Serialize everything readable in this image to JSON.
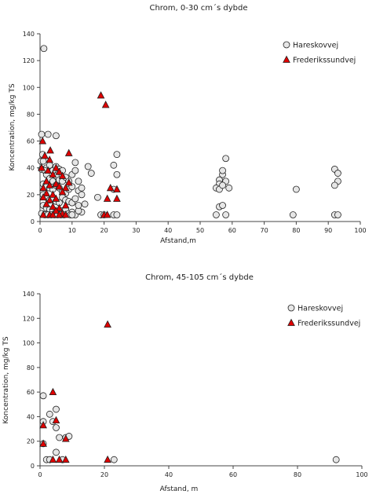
{
  "chart_data": [
    {
      "type": "scatter",
      "title": "Chrom, 0-30 cm´s dybde",
      "xlabel": "Afstand,m",
      "ylabel": "Koncentration, mg/kg TS",
      "xlim": [
        0,
        100
      ],
      "ylim": [
        0,
        140
      ],
      "xticks": [
        0,
        10,
        20,
        30,
        40,
        50,
        60,
        70,
        80,
        90,
        100
      ],
      "yticks": [
        0,
        20,
        40,
        60,
        80,
        100,
        120,
        140
      ],
      "grid": false,
      "legend_position": "top-right",
      "series": [
        {
          "name": "Hareskovvej",
          "marker": "circle",
          "color": "#e6e6e6",
          "points": [
            [
              1.2,
              129
            ],
            [
              0.5,
              65
            ],
            [
              2.5,
              65
            ],
            [
              5,
              64
            ],
            [
              0.8,
              50
            ],
            [
              0.3,
              45
            ],
            [
              1,
              45
            ],
            [
              2,
              40
            ],
            [
              0.5,
              39
            ],
            [
              1.5,
              38
            ],
            [
              3,
              42
            ],
            [
              4,
              38
            ],
            [
              5,
              41
            ],
            [
              6,
              39
            ],
            [
              7,
              38
            ],
            [
              2,
              35
            ],
            [
              3,
              32
            ],
            [
              4,
              30
            ],
            [
              5,
              34
            ],
            [
              6,
              31
            ],
            [
              7,
              30
            ],
            [
              8,
              33
            ],
            [
              1,
              28
            ],
            [
              2,
              26
            ],
            [
              3,
              25
            ],
            [
              4,
              24
            ],
            [
              5,
              27
            ],
            [
              6,
              25
            ],
            [
              7,
              22
            ],
            [
              8,
              21
            ],
            [
              9,
              24
            ],
            [
              10,
              26
            ],
            [
              1,
              20
            ],
            [
              2,
              18
            ],
            [
              3,
              16
            ],
            [
              4,
              17
            ],
            [
              5,
              15
            ],
            [
              6,
              14
            ],
            [
              7,
              18
            ],
            [
              8,
              16
            ],
            [
              9,
              15
            ],
            [
              10,
              14
            ],
            [
              11,
              17
            ],
            [
              1,
              12
            ],
            [
              2,
              10
            ],
            [
              3,
              9
            ],
            [
              4,
              8
            ],
            [
              5,
              7
            ],
            [
              6,
              6
            ],
            [
              7,
              8
            ],
            [
              8,
              9
            ],
            [
              9,
              6
            ],
            [
              10,
              7
            ],
            [
              0.5,
              6
            ],
            [
              1.5,
              5
            ],
            [
              2.5,
              5
            ],
            [
              3.5,
              5
            ],
            [
              4.5,
              5
            ],
            [
              5.5,
              5
            ],
            [
              6.5,
              5
            ],
            [
              7.5,
              5
            ],
            [
              9.5,
              5
            ],
            [
              11,
              5
            ],
            [
              13,
              7
            ],
            [
              12,
              8
            ],
            [
              11,
              44
            ],
            [
              10,
              35
            ],
            [
              11,
              38
            ],
            [
              12,
              30
            ],
            [
              12,
              23
            ],
            [
              13,
              20
            ],
            [
              14,
              13
            ],
            [
              15,
              41
            ],
            [
              16,
              36
            ],
            [
              18,
              18
            ],
            [
              19,
              5
            ],
            [
              20,
              5
            ],
            [
              23,
              42
            ],
            [
              24,
              50
            ],
            [
              24,
              35
            ],
            [
              23,
              24
            ],
            [
              23,
              5
            ],
            [
              24,
              5
            ],
            [
              12,
              12
            ],
            [
              10,
              5
            ],
            [
              9,
              30
            ],
            [
              13,
              25
            ],
            [
              56,
              31
            ],
            [
              57,
              35
            ],
            [
              57,
              38
            ],
            [
              58,
              47
            ],
            [
              58,
              30
            ],
            [
              56,
              28
            ],
            [
              55,
              25
            ],
            [
              56,
              24
            ],
            [
              57,
              27
            ],
            [
              59,
              25
            ],
            [
              56,
              11
            ],
            [
              57,
              12
            ],
            [
              55,
              5
            ],
            [
              58,
              5
            ],
            [
              80,
              24
            ],
            [
              79,
              5
            ],
            [
              92,
              39
            ],
            [
              93,
              36
            ],
            [
              93,
              30
            ],
            [
              92,
              27
            ],
            [
              92,
              5
            ],
            [
              93,
              5
            ]
          ]
        },
        {
          "name": "Frederikssundvej",
          "marker": "triangle",
          "color": "#e00000",
          "points": [
            [
              19,
              94
            ],
            [
              20.5,
              87
            ],
            [
              0.8,
              60
            ],
            [
              3.2,
              53
            ],
            [
              9,
              51
            ],
            [
              1.5,
              49
            ],
            [
              3,
              46
            ],
            [
              0.5,
              40
            ],
            [
              2.5,
              38
            ],
            [
              5,
              40
            ],
            [
              6,
              37
            ],
            [
              4,
              35
            ],
            [
              7,
              34
            ],
            [
              9,
              29
            ],
            [
              2,
              30
            ],
            [
              3,
              27
            ],
            [
              1,
              25
            ],
            [
              5,
              28
            ],
            [
              6,
              26
            ],
            [
              8,
              25
            ],
            [
              22,
              25
            ],
            [
              24,
              24
            ],
            [
              2,
              21
            ],
            [
              4,
              20
            ],
            [
              7,
              22
            ],
            [
              1,
              18
            ],
            [
              3,
              16
            ],
            [
              5,
              17
            ],
            [
              21,
              17
            ],
            [
              24,
              17
            ],
            [
              2,
              13
            ],
            [
              4,
              11
            ],
            [
              6,
              10
            ],
            [
              8,
              12
            ],
            [
              5,
              8
            ],
            [
              7,
              6
            ],
            [
              3,
              5
            ],
            [
              6,
              5
            ],
            [
              8,
              5
            ],
            [
              20,
              5
            ],
            [
              21,
              5
            ],
            [
              1,
              5
            ],
            [
              4,
              5
            ]
          ]
        }
      ]
    },
    {
      "type": "scatter",
      "title": "Chrom, 45-105 cm´s dybde",
      "xlabel": "Afstand, m",
      "ylabel": "Koncentration, mg/kg TS",
      "xlim": [
        0,
        100
      ],
      "ylim": [
        0,
        140
      ],
      "xticks": [
        0,
        20,
        40,
        60,
        80,
        100
      ],
      "yticks": [
        0,
        20,
        40,
        60,
        80,
        100,
        120,
        140
      ],
      "grid": false,
      "legend_position": "top-right",
      "series": [
        {
          "name": "Hareskovvej",
          "marker": "circle",
          "color": "#e6e6e6",
          "points": [
            [
              1,
              57
            ],
            [
              5,
              46
            ],
            [
              3,
              42
            ],
            [
              1,
              36
            ],
            [
              4,
              36
            ],
            [
              5,
              31
            ],
            [
              1,
              18
            ],
            [
              6,
              23
            ],
            [
              8,
              23
            ],
            [
              9,
              24
            ],
            [
              5,
              11
            ],
            [
              2,
              5
            ],
            [
              3,
              5
            ],
            [
              7,
              5
            ],
            [
              23,
              5
            ],
            [
              92,
              5
            ]
          ]
        },
        {
          "name": "Frederikssundvej",
          "marker": "triangle",
          "color": "#e00000",
          "points": [
            [
              21,
              115
            ],
            [
              4,
              60
            ],
            [
              5,
              37
            ],
            [
              1,
              33
            ],
            [
              1,
              18
            ],
            [
              8,
              22
            ],
            [
              4,
              5
            ],
            [
              6,
              5
            ],
            [
              8,
              5
            ],
            [
              21,
              5
            ]
          ]
        }
      ]
    }
  ]
}
